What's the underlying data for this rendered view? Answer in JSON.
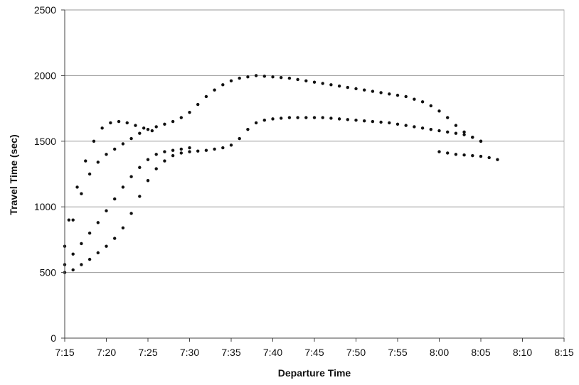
{
  "chart_data": {
    "type": "scatter",
    "title": "",
    "xlabel": "Departure Time",
    "ylabel": "Travel Time (sec)",
    "x_ticks": [
      "7:15",
      "7:20",
      "7:25",
      "7:30",
      "7:35",
      "7:40",
      "7:45",
      "7:50",
      "7:55",
      "8:00",
      "8:05",
      "8:10",
      "8:15"
    ],
    "y_ticks": [
      "0",
      "500",
      "1000",
      "1500",
      "2000",
      "2500"
    ],
    "x_unit": "minutes after 7:00",
    "xlim": [
      15,
      75
    ],
    "ylim": [
      0,
      2500
    ],
    "grid": "horizontal",
    "legend": "none",
    "point_color": "#111111",
    "series": [
      {
        "x": [
          15.0,
          16.0,
          17.0,
          18.0,
          19.0,
          20.0,
          21.0,
          22.0,
          23.0,
          24.0,
          25.0,
          26.0,
          27.0,
          28.0,
          29.0,
          30.0,
          31.0,
          32.0,
          33.0,
          34.0,
          35.0,
          36.0,
          37.0,
          38.0,
          39.0,
          40.0,
          41.0,
          42.0,
          43.0,
          44.0,
          45.0,
          46.0,
          47.0,
          48.0,
          49.0,
          50.0,
          51.0,
          52.0,
          53.0,
          54.0,
          55.0,
          56.0,
          57.0,
          58.0,
          59.0,
          60.0,
          61.0,
          62.0,
          63.0,
          64.0,
          65.0
        ],
        "y": [
          500,
          520,
          560,
          600,
          650,
          700,
          760,
          840,
          950,
          1080,
          1200,
          1290,
          1350,
          1390,
          1410,
          1420,
          1425,
          1430,
          1440,
          1450,
          1470,
          1520,
          1590,
          1640,
          1660,
          1670,
          1675,
          1680,
          1680,
          1680,
          1680,
          1680,
          1675,
          1670,
          1665,
          1660,
          1655,
          1650,
          1645,
          1640,
          1630,
          1620,
          1610,
          1600,
          1590,
          1580,
          1570,
          1560,
          1550,
          1530,
          1500
        ]
      },
      {
        "x": [
          15.0,
          16.0,
          17.0,
          18.0,
          19.0,
          20.0,
          21.0,
          22.0,
          23.0,
          24.0,
          25.0,
          26.0,
          27.0,
          28.0,
          29.0,
          30.0,
          31.0,
          32.0,
          33.0,
          34.0,
          35.0,
          36.0,
          37.0,
          38.0,
          39.0,
          40.0,
          41.0,
          42.0,
          43.0,
          44.0,
          45.0,
          46.0,
          47.0,
          48.0,
          49.0,
          50.0,
          51.0,
          52.0,
          53.0,
          54.0,
          55.0,
          56.0,
          57.0,
          58.0,
          59.0,
          60.0,
          61.0,
          62.0,
          63.0,
          64.0,
          65.0
        ],
        "y": [
          700,
          900,
          1100,
          1250,
          1340,
          1400,
          1440,
          1480,
          1520,
          1560,
          1590,
          1610,
          1630,
          1650,
          1680,
          1720,
          1780,
          1840,
          1890,
          1930,
          1960,
          1980,
          1990,
          2000,
          1995,
          1990,
          1985,
          1980,
          1970,
          1960,
          1950,
          1940,
          1930,
          1920,
          1910,
          1900,
          1890,
          1880,
          1870,
          1860,
          1850,
          1840,
          1820,
          1800,
          1770,
          1730,
          1680,
          1620,
          1570,
          1530,
          1500
        ]
      },
      {
        "x": [
          15.0,
          16.0,
          17.0,
          18.0,
          19.0,
          20.0,
          21.0,
          22.0,
          23.0,
          24.0,
          25.0,
          26.0,
          27.0,
          28.0,
          29.0,
          30.0
        ],
        "y": [
          560,
          640,
          720,
          800,
          880,
          970,
          1060,
          1150,
          1230,
          1300,
          1360,
          1400,
          1420,
          1430,
          1440,
          1450
        ]
      },
      {
        "x": [
          15.5,
          16.5,
          17.5,
          18.5,
          19.5,
          20.5,
          21.5,
          22.5,
          23.5,
          24.5,
          25.5
        ],
        "y": [
          900,
          1150,
          1350,
          1500,
          1600,
          1640,
          1650,
          1640,
          1620,
          1600,
          1580
        ]
      },
      {
        "x": [
          60.0,
          61.0,
          62.0,
          63.0,
          64.0,
          65.0,
          66.0,
          67.0
        ],
        "y": [
          1420,
          1410,
          1400,
          1395,
          1390,
          1385,
          1375,
          1360
        ]
      }
    ]
  }
}
